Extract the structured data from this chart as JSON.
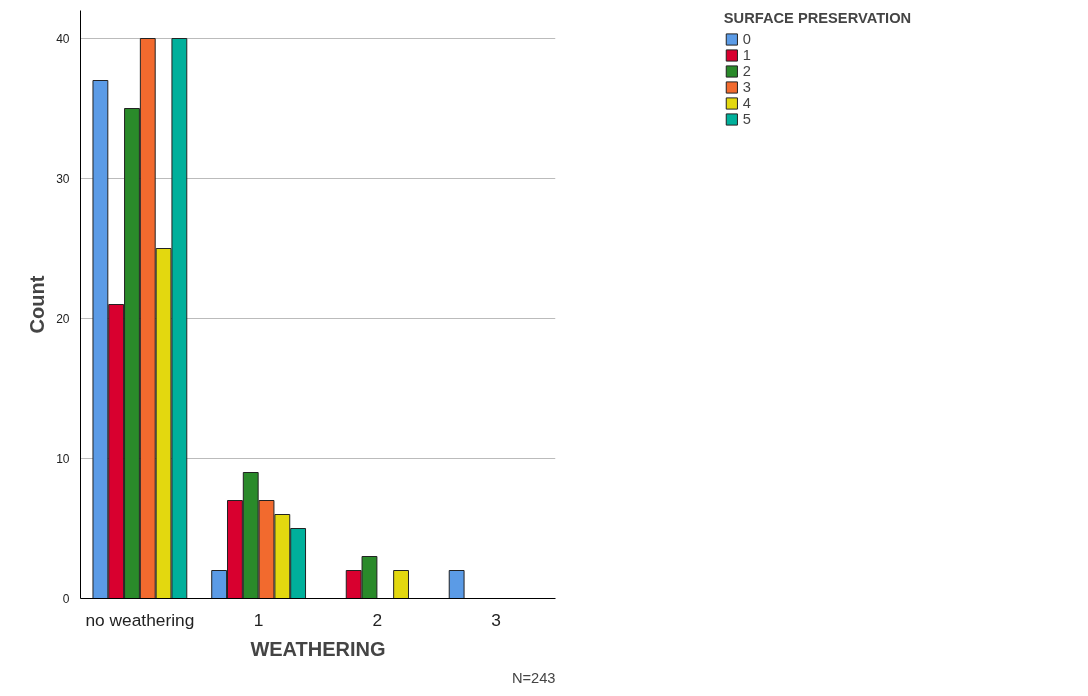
{
  "chart_data": {
    "type": "bar",
    "xlabel": "WEATHERING",
    "ylabel": "Count",
    "legend_title": "SURFACE PRESERVATION",
    "categories": [
      "no weathering",
      "1",
      "2",
      "3"
    ],
    "series": [
      {
        "name": "0",
        "color": "#5b9be6",
        "values": [
          37,
          2,
          0,
          2
        ]
      },
      {
        "name": "1",
        "color": "#d8002f",
        "values": [
          21,
          7,
          2,
          0
        ]
      },
      {
        "name": "2",
        "color": "#2a8a2a",
        "values": [
          35,
          9,
          3,
          0
        ]
      },
      {
        "name": "3",
        "color": "#f26a2e",
        "values": [
          40,
          7,
          0,
          0
        ]
      },
      {
        "name": "4",
        "color": "#e3d80f",
        "values": [
          25,
          6,
          2,
          0
        ]
      },
      {
        "name": "5",
        "color": "#00b09b",
        "values": [
          40,
          5,
          0,
          0
        ]
      }
    ],
    "ylim": [
      0,
      42
    ],
    "yticks": [
      0,
      10,
      20,
      30,
      40
    ],
    "grid": "y",
    "legend": "top right",
    "annotations": [
      "N=243"
    ]
  }
}
